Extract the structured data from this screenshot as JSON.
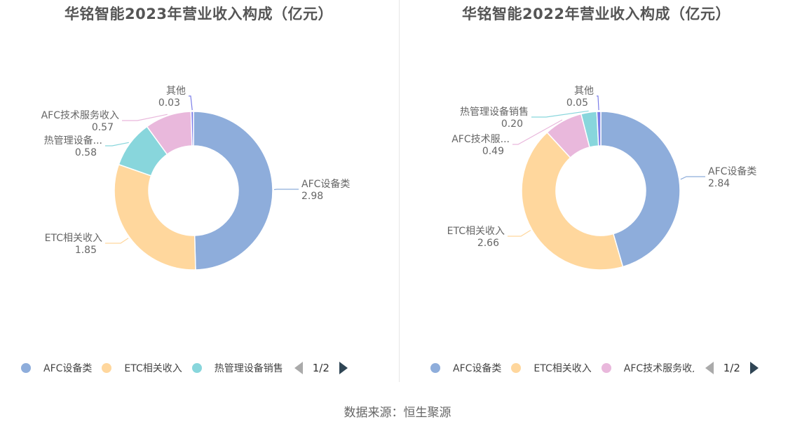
{
  "source_text": "数据来源：恒生聚源",
  "chart_data": [
    {
      "type": "pie",
      "title": "华铭智能2023年营业收入构成（亿元）",
      "slices": [
        {
          "label": "AFC设备类",
          "value": 2.98,
          "color": "#8eaddb",
          "display_label": "AFC设备类",
          "display_value": "2.98"
        },
        {
          "label": "ETC相关收入",
          "value": 1.85,
          "color": "#ffd79d",
          "display_label": "ETC相关收入",
          "display_value": "1.85"
        },
        {
          "label": "热管理设备销售",
          "value": 0.58,
          "color": "#88d6dc",
          "display_label": "热管理设备...",
          "display_value": "0.58"
        },
        {
          "label": "AFC技术服务收入",
          "value": 0.57,
          "color": "#e9b8dc",
          "display_label": "AFC技术服务收入",
          "display_value": "0.57"
        },
        {
          "label": "其他",
          "value": 0.03,
          "color": "#7b7de8",
          "display_label": "其他",
          "display_value": "0.03"
        }
      ],
      "legend": {
        "items": [
          "AFC设备类",
          "ETC相关收入",
          "热管理设备销售"
        ],
        "colors": [
          "#8eaddb",
          "#ffd79d",
          "#88d6dc"
        ],
        "page": "1/2",
        "placement": "bottom-left"
      }
    },
    {
      "type": "pie",
      "title": "华铭智能2022年营业收入构成（亿元）",
      "slices": [
        {
          "label": "AFC设备类",
          "value": 2.84,
          "color": "#8eaddb",
          "display_label": "AFC设备类",
          "display_value": "2.84"
        },
        {
          "label": "ETC相关收入",
          "value": 2.66,
          "color": "#ffd79d",
          "display_label": "ETC相关收入",
          "display_value": "2.66"
        },
        {
          "label": "AFC技术服务收入",
          "value": 0.49,
          "color": "#e9b8dc",
          "display_label": "AFC技术服...",
          "display_value": "0.49"
        },
        {
          "label": "热管理设备销售",
          "value": 0.2,
          "color": "#88d6dc",
          "display_label": "热管理设备销售",
          "display_value": "0.20"
        },
        {
          "label": "其他",
          "value": 0.05,
          "color": "#7b7de8",
          "display_label": "其他",
          "display_value": "0.05"
        }
      ],
      "legend": {
        "items": [
          "AFC设备类",
          "ETC相关收入",
          "AFC技术服务收入"
        ],
        "colors": [
          "#8eaddb",
          "#ffd79d",
          "#e9b8dc"
        ],
        "page": "1/2",
        "placement": "bottom-left"
      }
    }
  ]
}
